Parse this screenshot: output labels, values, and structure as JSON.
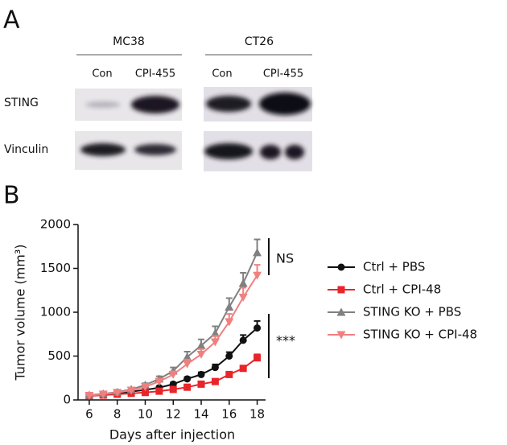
{
  "panel_a": {
    "label": "A",
    "groups": [
      {
        "name": "MC38",
        "lanes": [
          "Con",
          "CPI-455"
        ]
      },
      {
        "name": "CT26",
        "lanes": [
          "Con",
          "CPI-455"
        ]
      }
    ],
    "rows": [
      "STING",
      "Vinculin"
    ]
  },
  "panel_b": {
    "label": "B"
  },
  "chart_data": {
    "type": "line",
    "x_label": "Days after injection",
    "y_label": "Tumor volume (mm³)",
    "x": [
      6,
      7,
      8,
      9,
      10,
      11,
      12,
      13,
      14,
      15,
      16,
      17,
      18
    ],
    "xlim": [
      5.2,
      18.6
    ],
    "xticks": [
      6,
      8,
      10,
      12,
      14,
      16,
      18
    ],
    "ylim": [
      0,
      2000
    ],
    "yticks": [
      0,
      500,
      1000,
      1500,
      2000
    ],
    "series": [
      {
        "name": "Ctrl + PBS",
        "color": "#111111",
        "marker": "circle",
        "values": [
          50,
          60,
          75,
          95,
          115,
          140,
          180,
          240,
          290,
          370,
          500,
          680,
          820
        ],
        "errors": [
          5,
          6,
          8,
          10,
          12,
          15,
          18,
          20,
          25,
          35,
          45,
          60,
          80
        ]
      },
      {
        "name": "Ctrl + CPI-48",
        "color": "#e8252b",
        "marker": "square",
        "values": [
          45,
          55,
          65,
          75,
          85,
          100,
          120,
          145,
          180,
          210,
          290,
          360,
          480
        ],
        "errors": [
          5,
          5,
          6,
          7,
          8,
          10,
          12,
          14,
          16,
          20,
          25,
          30,
          40
        ]
      },
      {
        "name": "STING KO + PBS",
        "color": "#808080",
        "marker": "triangle-up",
        "values": [
          55,
          70,
          90,
          120,
          170,
          240,
          330,
          490,
          620,
          760,
          1060,
          1330,
          1680
        ],
        "errors": [
          6,
          8,
          10,
          14,
          20,
          30,
          40,
          60,
          70,
          80,
          100,
          120,
          150
        ]
      },
      {
        "name": "STING KO + CPI-48",
        "color": "#f08080",
        "marker": "triangle-down",
        "values": [
          50,
          65,
          85,
          110,
          150,
          210,
          290,
          410,
          520,
          660,
          890,
          1170,
          1420
        ],
        "errors": [
          5,
          7,
          9,
          12,
          18,
          25,
          35,
          50,
          60,
          70,
          90,
          110,
          120
        ]
      }
    ],
    "annotations": [
      "NS",
      "***"
    ]
  }
}
